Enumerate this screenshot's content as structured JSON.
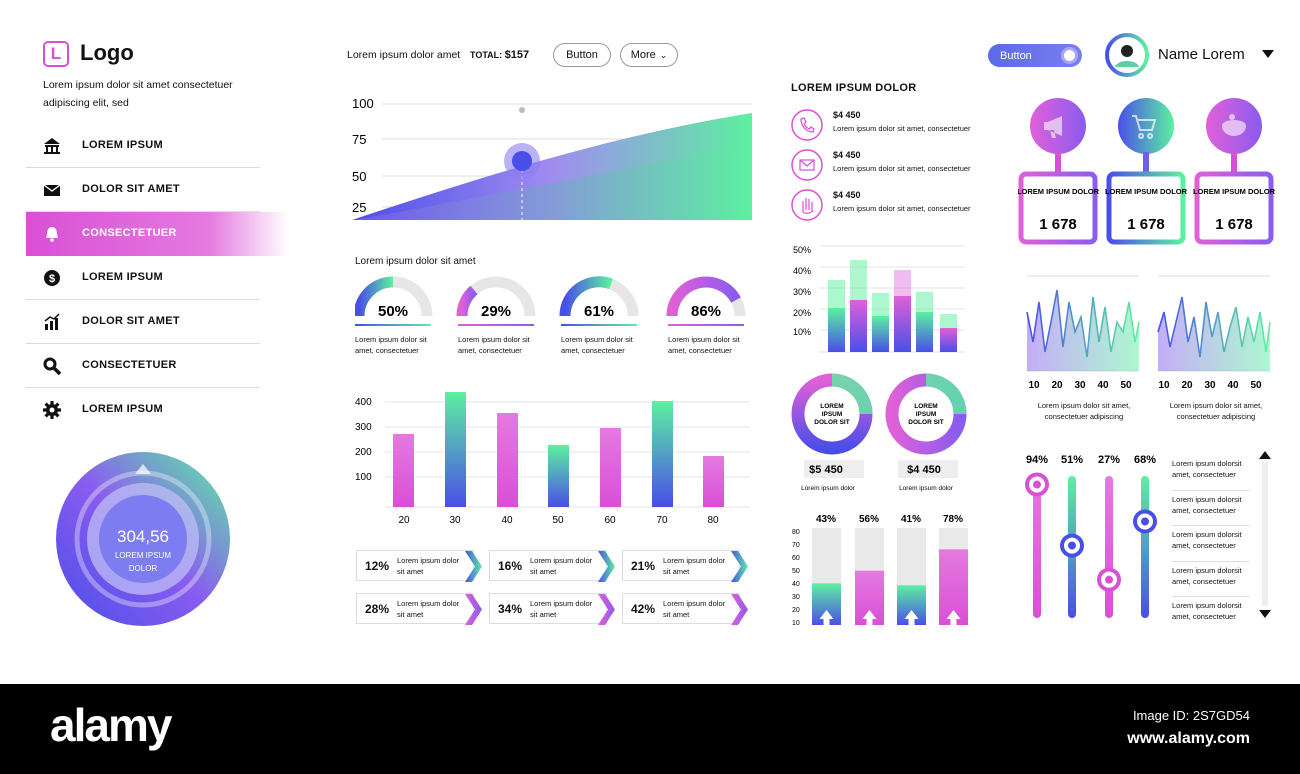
{
  "brand": {
    "logo_letter": "L",
    "logo_text": "Logo",
    "tagline": "Lorem ipsum dolor sit amet consectetuer adipiscing elit, sed"
  },
  "nav": {
    "items": [
      {
        "label": "LOREM IPSUM",
        "icon": "bank-icon"
      },
      {
        "label": "DOLOR SIT AMET",
        "icon": "mail-icon"
      },
      {
        "label": "CONSECTETUER",
        "icon": "bell-icon",
        "active": true
      },
      {
        "label": "LOREM IPSUM",
        "icon": "dollar-icon"
      },
      {
        "label": "DOLOR SIT AMET",
        "icon": "chart-icon"
      },
      {
        "label": "CONSECTETUER",
        "icon": "search-icon"
      },
      {
        "label": "LOREM IPSUM",
        "icon": "gear-icon"
      }
    ]
  },
  "radial": {
    "value": "304,56",
    "label_line1": "LOREM IPSUM",
    "label_line2": "DOLOR"
  },
  "toolbar": {
    "text": "Lorem ipsum dolor amet",
    "total_label": "TOTAL:",
    "total_value": "$157",
    "button_label": "Button",
    "more_label": "More"
  },
  "header": {
    "toggle_label": "Button",
    "user_name": "Name Lorem"
  },
  "area_chart": {
    "yticks": [
      "100",
      "75",
      "50",
      "25"
    ]
  },
  "gauges": {
    "title": "Lorem ipsum dolor sit amet",
    "items": [
      {
        "value": "50%",
        "caption": "Lorem ipsum dolor sit amet, consectetuer"
      },
      {
        "value": "29%",
        "caption": "Lorem ipsum dolor sit amet, consectetuer"
      },
      {
        "value": "61%",
        "caption": "Lorem ipsum dolor sit amet, consectetuer"
      },
      {
        "value": "86%",
        "caption": "Lorem ipsum dolor sit amet, consectetuer"
      }
    ]
  },
  "bar_chart": {
    "yticks": [
      "400",
      "300",
      "200",
      "100"
    ],
    "categories": [
      "20",
      "30",
      "40",
      "50",
      "60",
      "70",
      "80"
    ]
  },
  "arrow_cards": [
    {
      "value": "12%",
      "text": "Lorem ipsum dolor sit amet"
    },
    {
      "value": "16%",
      "text": "Lorem ipsum dolor sit amet"
    },
    {
      "value": "21%",
      "text": "Lorem ipsum dolor sit amet"
    },
    {
      "value": "28%",
      "text": "Lorem ipsum dolor sit amet"
    },
    {
      "value": "34%",
      "text": "Lorem ipsum dolor sit amet"
    },
    {
      "value": "42%",
      "text": "Lorem ipsum dolor sit amet"
    }
  ],
  "contacts": {
    "title": "LOREM IPSUM DOLOR",
    "items": [
      {
        "amount": "$4 450",
        "text": "Lorem ipsum dolor sit amet, consectetuer",
        "icon": "phone-icon"
      },
      {
        "amount": "$4 450",
        "text": "Lorem ipsum dolor sit amet, consectetuer",
        "icon": "mail-icon"
      },
      {
        "amount": "$4 450",
        "text": "Lorem ipsum dolor sit amet, consectetuer",
        "icon": "hand-icon"
      }
    ]
  },
  "stack_chart": {
    "yticks": [
      "50%",
      "40%",
      "30%",
      "20%",
      "10%"
    ]
  },
  "donuts": [
    {
      "center": "LOREM IPSUM DOLOR SIT",
      "amount": "$5 450",
      "caption": "Lorem ipsum dolor"
    },
    {
      "center": "LOREM IPSUM DOLOR SIT",
      "amount": "$4 450",
      "caption": "Lorem ipsum dolor"
    }
  ],
  "progress_bars": {
    "yticks": [
      "80",
      "70",
      "60",
      "50",
      "40",
      "30",
      "20",
      "10"
    ],
    "items": [
      {
        "label": "43%",
        "fraction": 0.43
      },
      {
        "label": "56%",
        "fraction": 0.56
      },
      {
        "label": "41%",
        "fraction": 0.41
      },
      {
        "label": "78%",
        "fraction": 0.78
      }
    ]
  },
  "pins": [
    {
      "label": "LOREM IPSUM DOLOR",
      "value": "1 678",
      "icon": "megaphone-icon"
    },
    {
      "label": "LOREM IPSUM DOLOR",
      "value": "1 678",
      "icon": "cart-icon"
    },
    {
      "label": "LOREM IPSUM DOLOR",
      "value": "1 678",
      "icon": "piggy-bank-icon"
    }
  ],
  "line_charts": [
    {
      "xticks": [
        "10",
        "20",
        "30",
        "40",
        "50"
      ],
      "caption": "Lorem ipsum dolor sit amet, consectetuer adipiscing"
    },
    {
      "xticks": [
        "10",
        "20",
        "30",
        "40",
        "50"
      ],
      "caption": "Lorem ipsum dolor sit amet, consectetuer adipiscing"
    }
  ],
  "sliders": [
    {
      "label": "94%",
      "fraction": 0.94
    },
    {
      "label": "51%",
      "fraction": 0.51
    },
    {
      "label": "27%",
      "fraction": 0.27
    },
    {
      "label": "68%",
      "fraction": 0.68
    }
  ],
  "list": {
    "items": [
      "Lorem ipsum dolorsit amet, consectetuer",
      "Lorem ipsum dolorsit amet, consectetuer",
      "Lorem ipsum dolorsit amet, consectetuer",
      "Lorem ipsum dolorsit amet, consectetuer",
      "Lorem ipsum dolorsit amet, consectetuer"
    ]
  },
  "footer": {
    "brand": "alamy",
    "image_id": "Image ID: 2S7GD54",
    "url": "www.alamy.com"
  },
  "colors": {
    "pink": "#d94fd6",
    "blue": "#4a4ee8",
    "green": "#5cf0a0",
    "violet": "#8a5cf0"
  }
}
